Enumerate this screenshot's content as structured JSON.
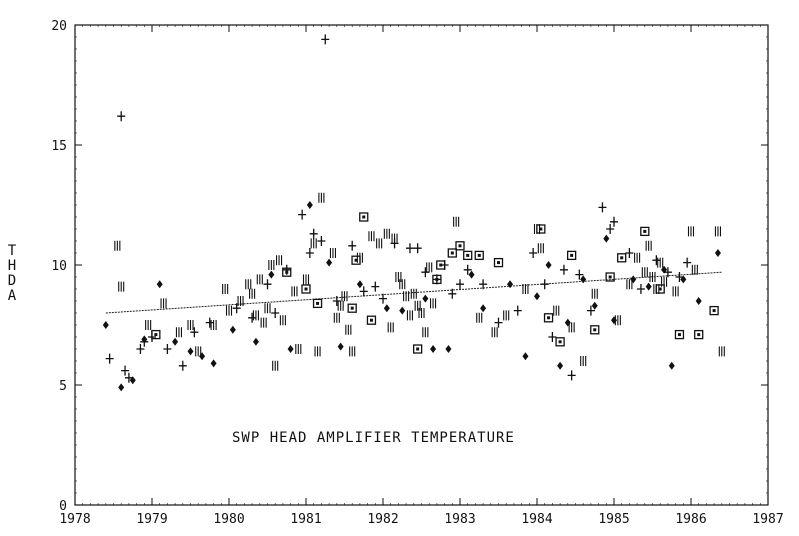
{
  "chart_data": {
    "type": "scatter",
    "title": "",
    "annotation": "SWP HEAD AMPLIFIER TEMPERATURE",
    "xlabel": "",
    "ylabel": "THDA",
    "xlim": [
      1978,
      1987
    ],
    "ylim": [
      0,
      20
    ],
    "xticks": [
      "1978",
      "1979",
      "1980",
      "1981",
      "1982",
      "1983",
      "1984",
      "1985",
      "1986",
      "1987"
    ],
    "yticks": [
      "0",
      "5",
      "10",
      "15",
      "20"
    ],
    "grid": false,
    "trend": {
      "x": [
        1978.4,
        1986.4
      ],
      "y": [
        8.0,
        9.7
      ]
    },
    "series": [
      {
        "marker": "plus",
        "points": [
          [
            1978.45,
            6.1
          ],
          [
            1978.6,
            16.2
          ],
          [
            1978.65,
            5.6
          ],
          [
            1978.7,
            5.3
          ],
          [
            1978.85,
            6.5
          ],
          [
            1978.9,
            6.8
          ],
          [
            1979.0,
            7.0
          ],
          [
            1979.2,
            6.5
          ],
          [
            1979.4,
            5.8
          ],
          [
            1979.55,
            7.2
          ],
          [
            1979.75,
            7.6
          ],
          [
            1980.1,
            8.2
          ],
          [
            1980.3,
            7.8
          ],
          [
            1980.5,
            9.2
          ],
          [
            1980.6,
            8.0
          ],
          [
            1980.75,
            9.8
          ],
          [
            1980.95,
            12.1
          ],
          [
            1981.05,
            10.5
          ],
          [
            1981.1,
            11.3
          ],
          [
            1981.2,
            11.0
          ],
          [
            1981.25,
            19.4
          ],
          [
            1981.4,
            8.5
          ],
          [
            1981.6,
            10.8
          ],
          [
            1981.75,
            8.9
          ],
          [
            1981.9,
            9.1
          ],
          [
            1982.0,
            8.6
          ],
          [
            1982.15,
            10.9
          ],
          [
            1982.35,
            10.7
          ],
          [
            1982.45,
            10.7
          ],
          [
            1982.55,
            9.7
          ],
          [
            1982.7,
            9.4
          ],
          [
            1982.8,
            10.0
          ],
          [
            1982.9,
            8.8
          ],
          [
            1983.0,
            9.2
          ],
          [
            1983.1,
            9.8
          ],
          [
            1983.3,
            9.2
          ],
          [
            1983.5,
            7.6
          ],
          [
            1983.75,
            8.1
          ],
          [
            1983.95,
            10.5
          ],
          [
            1984.1,
            9.2
          ],
          [
            1984.2,
            7.0
          ],
          [
            1984.35,
            9.8
          ],
          [
            1984.45,
            5.4
          ],
          [
            1984.55,
            9.6
          ],
          [
            1984.7,
            8.1
          ],
          [
            1984.85,
            12.4
          ],
          [
            1984.95,
            11.5
          ],
          [
            1985.0,
            11.8
          ],
          [
            1985.2,
            10.5
          ],
          [
            1985.35,
            9.0
          ],
          [
            1985.55,
            10.2
          ],
          [
            1985.7,
            9.7
          ],
          [
            1985.85,
            9.5
          ],
          [
            1985.95,
            10.1
          ]
        ]
      },
      {
        "marker": "diamond",
        "points": [
          [
            1978.4,
            7.5
          ],
          [
            1978.6,
            4.9
          ],
          [
            1978.75,
            5.2
          ],
          [
            1978.9,
            6.9
          ],
          [
            1979.1,
            9.2
          ],
          [
            1979.3,
            6.8
          ],
          [
            1979.5,
            6.4
          ],
          [
            1979.65,
            6.2
          ],
          [
            1979.8,
            5.9
          ],
          [
            1980.05,
            7.3
          ],
          [
            1980.35,
            6.8
          ],
          [
            1980.55,
            9.6
          ],
          [
            1980.8,
            6.5
          ],
          [
            1981.05,
            12.5
          ],
          [
            1981.3,
            10.1
          ],
          [
            1981.45,
            6.6
          ],
          [
            1981.7,
            9.2
          ],
          [
            1982.05,
            8.2
          ],
          [
            1982.25,
            8.1
          ],
          [
            1982.55,
            8.6
          ],
          [
            1982.65,
            6.5
          ],
          [
            1982.85,
            6.5
          ],
          [
            1983.15,
            9.6
          ],
          [
            1983.3,
            8.2
          ],
          [
            1983.65,
            9.2
          ],
          [
            1983.85,
            6.2
          ],
          [
            1984.0,
            8.7
          ],
          [
            1984.15,
            10.0
          ],
          [
            1984.3,
            5.8
          ],
          [
            1984.4,
            7.6
          ],
          [
            1984.6,
            9.4
          ],
          [
            1984.75,
            8.3
          ],
          [
            1984.9,
            11.1
          ],
          [
            1985.0,
            7.7
          ],
          [
            1985.25,
            9.4
          ],
          [
            1985.45,
            9.1
          ],
          [
            1985.65,
            9.8
          ],
          [
            1985.75,
            5.8
          ],
          [
            1985.9,
            9.4
          ],
          [
            1986.1,
            8.5
          ],
          [
            1986.35,
            10.5
          ]
        ]
      },
      {
        "marker": "bar",
        "points": [
          [
            1978.55,
            10.8
          ],
          [
            1978.6,
            9.1
          ],
          [
            1978.95,
            7.5
          ],
          [
            1979.15,
            8.4
          ],
          [
            1979.35,
            7.2
          ],
          [
            1979.5,
            7.5
          ],
          [
            1979.6,
            6.4
          ],
          [
            1979.8,
            7.5
          ],
          [
            1979.95,
            9.0
          ],
          [
            1980.0,
            8.1
          ],
          [
            1980.15,
            8.5
          ],
          [
            1980.25,
            9.2
          ],
          [
            1980.3,
            8.8
          ],
          [
            1980.35,
            7.9
          ],
          [
            1980.4,
            9.4
          ],
          [
            1980.45,
            7.6
          ],
          [
            1980.5,
            8.2
          ],
          [
            1980.55,
            10.0
          ],
          [
            1980.6,
            5.8
          ],
          [
            1980.65,
            10.2
          ],
          [
            1980.7,
            7.7
          ],
          [
            1980.85,
            8.9
          ],
          [
            1980.9,
            6.5
          ],
          [
            1981.0,
            9.4
          ],
          [
            1981.1,
            10.9
          ],
          [
            1981.15,
            6.4
          ],
          [
            1981.2,
            12.8
          ],
          [
            1981.35,
            10.5
          ],
          [
            1981.4,
            7.8
          ],
          [
            1981.45,
            8.3
          ],
          [
            1981.5,
            8.7
          ],
          [
            1981.55,
            7.3
          ],
          [
            1981.6,
            6.4
          ],
          [
            1981.7,
            10.3
          ],
          [
            1981.85,
            11.2
          ],
          [
            1981.95,
            10.9
          ],
          [
            1982.05,
            11.3
          ],
          [
            1982.1,
            7.4
          ],
          [
            1982.15,
            11.1
          ],
          [
            1982.2,
            9.5
          ],
          [
            1982.25,
            9.2
          ],
          [
            1982.3,
            8.7
          ],
          [
            1982.35,
            7.9
          ],
          [
            1982.4,
            8.8
          ],
          [
            1982.45,
            8.3
          ],
          [
            1982.5,
            8.0
          ],
          [
            1982.55,
            7.2
          ],
          [
            1982.6,
            9.9
          ],
          [
            1982.65,
            8.4
          ],
          [
            1982.95,
            11.8
          ],
          [
            1983.25,
            7.8
          ],
          [
            1983.45,
            7.2
          ],
          [
            1983.6,
            7.9
          ],
          [
            1983.85,
            9.0
          ],
          [
            1984.0,
            11.5
          ],
          [
            1984.05,
            10.7
          ],
          [
            1984.25,
            8.1
          ],
          [
            1984.45,
            7.4
          ],
          [
            1984.6,
            6.0
          ],
          [
            1984.75,
            8.8
          ],
          [
            1985.05,
            7.7
          ],
          [
            1985.2,
            9.2
          ],
          [
            1985.3,
            10.3
          ],
          [
            1985.4,
            9.7
          ],
          [
            1985.45,
            10.8
          ],
          [
            1985.5,
            9.5
          ],
          [
            1985.55,
            9.0
          ],
          [
            1985.6,
            10.1
          ],
          [
            1985.65,
            9.3
          ],
          [
            1985.8,
            8.9
          ],
          [
            1986.0,
            11.4
          ],
          [
            1986.05,
            9.8
          ],
          [
            1986.35,
            11.4
          ],
          [
            1986.4,
            6.4
          ]
        ]
      },
      {
        "marker": "square",
        "points": [
          [
            1979.05,
            7.1
          ],
          [
            1980.75,
            9.7
          ],
          [
            1981.0,
            9.0
          ],
          [
            1981.15,
            8.4
          ],
          [
            1981.6,
            8.2
          ],
          [
            1981.65,
            10.2
          ],
          [
            1981.75,
            12.0
          ],
          [
            1981.85,
            7.7
          ],
          [
            1982.45,
            6.5
          ],
          [
            1982.7,
            9.4
          ],
          [
            1982.75,
            10.0
          ],
          [
            1982.9,
            10.5
          ],
          [
            1983.0,
            10.8
          ],
          [
            1983.1,
            10.4
          ],
          [
            1983.25,
            10.4
          ],
          [
            1983.5,
            10.1
          ],
          [
            1984.05,
            11.5
          ],
          [
            1984.15,
            7.8
          ],
          [
            1984.3,
            6.8
          ],
          [
            1984.45,
            10.4
          ],
          [
            1984.75,
            7.3
          ],
          [
            1984.95,
            9.5
          ],
          [
            1985.1,
            10.3
          ],
          [
            1985.4,
            11.4
          ],
          [
            1985.6,
            9.0
          ],
          [
            1985.85,
            7.1
          ],
          [
            1986.1,
            7.1
          ],
          [
            1986.3,
            8.1
          ]
        ]
      }
    ]
  }
}
